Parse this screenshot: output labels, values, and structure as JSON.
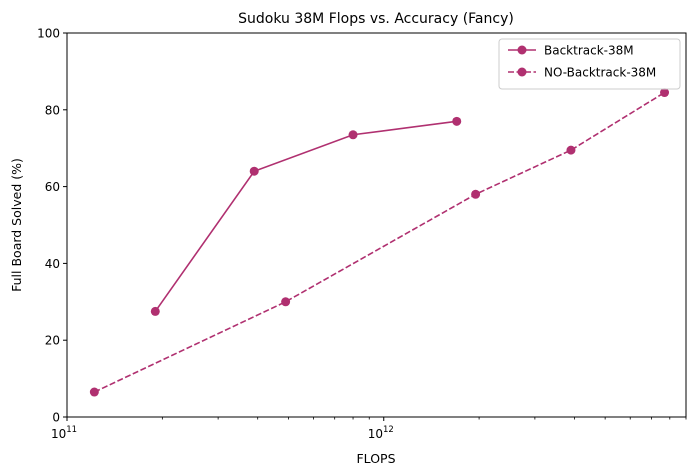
{
  "chart_data": {
    "type": "line",
    "title": "Sudoku 38M Flops vs. Accuracy (Fancy)",
    "xlabel": "FLOPS",
    "ylabel": "Full Board Solved (%)",
    "xscale": "log",
    "xlim": [
      100000000000.0,
      9000000000000.0
    ],
    "ylim": [
      0,
      100
    ],
    "x_major_ticks": [
      {
        "value": 100000000000.0,
        "base": "10",
        "exp": "11"
      },
      {
        "value": 1000000000000.0,
        "base": "10",
        "exp": "12"
      }
    ],
    "x_minor_ticks": [
      200000000000.0,
      300000000000.0,
      400000000000.0,
      500000000000.0,
      600000000000.0,
      700000000000.0,
      800000000000.0,
      900000000000.0,
      2000000000000.0,
      3000000000000.0,
      4000000000000.0,
      5000000000000.0,
      6000000000000.0,
      7000000000000.0,
      8000000000000.0,
      9000000000000.0
    ],
    "y_ticks": [
      0,
      20,
      40,
      60,
      80,
      100
    ],
    "grid": false,
    "legend_position": "top-right",
    "color": "#b03070",
    "series": [
      {
        "name": "Backtrack-38M",
        "style": "solid",
        "marker": "circle",
        "x": [
          190000000000.0,
          390000000000.0,
          800000000000.0,
          1700000000000.0
        ],
        "y": [
          27.5,
          64.0,
          73.5,
          77.0
        ]
      },
      {
        "name": "NO-Backtrack-38M",
        "style": "dashed",
        "marker": "circle",
        "x": [
          122000000000.0,
          490000000000.0,
          1950000000000.0,
          3900000000000.0,
          7700000000000.0
        ],
        "y": [
          6.5,
          30.0,
          58.0,
          69.5,
          84.5
        ]
      }
    ]
  }
}
